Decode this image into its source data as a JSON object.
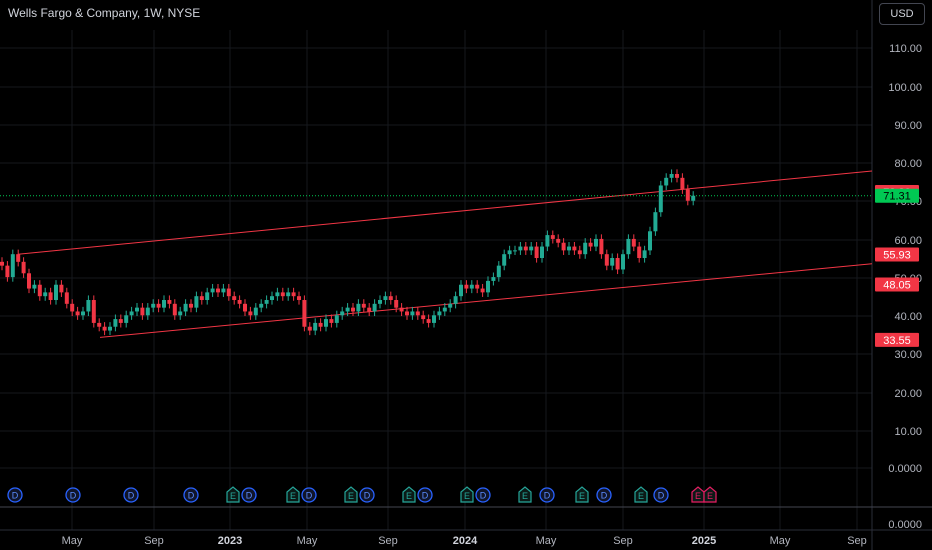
{
  "header": {
    "title": "Wells Fargo & Company, 1W, NYSE",
    "currency_label": "USD"
  },
  "colors": {
    "up": "#22ab94",
    "down": "#f23645",
    "channel": "#f23645",
    "last": "#00c853",
    "bg": "#000000"
  },
  "chart_data": {
    "type": "candlestick",
    "title": "Wells Fargo & Company, 1W, NYSE",
    "y_axis_ticks": [
      "110.00",
      "100.00",
      "90.00",
      "80.00",
      "70.00",
      "60.00",
      "50.00",
      "40.00",
      "30.00",
      "20.00",
      "10.00",
      "0.0000"
    ],
    "lower_axis_tick": "0.0000",
    "x_axis_ticks": [
      {
        "label": "May",
        "bold": false
      },
      {
        "label": "Sep",
        "bold": false
      },
      {
        "label": "2023",
        "bold": true
      },
      {
        "label": "May",
        "bold": false
      },
      {
        "label": "Sep",
        "bold": false
      },
      {
        "label": "2024",
        "bold": true
      },
      {
        "label": "May",
        "bold": false
      },
      {
        "label": "Sep",
        "bold": false
      },
      {
        "label": "2025",
        "bold": true
      },
      {
        "label": "May",
        "bold": false
      },
      {
        "label": "Sep",
        "bold": false
      }
    ],
    "price_tags": [
      {
        "label": "72.30",
        "value": 72.3,
        "color": "#f23645"
      },
      {
        "label": "71.31",
        "value": 71.31,
        "color": "#00c853"
      },
      {
        "label": "55.93",
        "value": 55.93,
        "color": "#f23645"
      },
      {
        "label": "48.05",
        "value": 48.05,
        "color": "#f23645"
      },
      {
        "label": "33.55",
        "value": 33.55,
        "color": "#f23645"
      }
    ],
    "channel_lines": [
      {
        "from": {
          "date": "2022-02",
          "price": 56
        },
        "to": {
          "date": "2025-11",
          "price": 77.8
        }
      },
      {
        "from": {
          "date": "2022-07",
          "price": 34.2
        },
        "to": {
          "date": "2025-11",
          "price": 53.5
        }
      }
    ],
    "closes": [
      53,
      50,
      56,
      54,
      51,
      47,
      48,
      45,
      46,
      44,
      48,
      46,
      43,
      41,
      40,
      41,
      44,
      38,
      37,
      36,
      37,
      39,
      38,
      40,
      41,
      42,
      40,
      42,
      43,
      42,
      44,
      43,
      40,
      41,
      43,
      42,
      45,
      44,
      46,
      47,
      46,
      47,
      45,
      44,
      43,
      41,
      40,
      42,
      43,
      44,
      45,
      46,
      45,
      46,
      45,
      44,
      37,
      36,
      38,
      37,
      39,
      38,
      40,
      41,
      42,
      41,
      43,
      42,
      41,
      43,
      44,
      45,
      44,
      42,
      41,
      40,
      41,
      40,
      39,
      38,
      40,
      41,
      42,
      43,
      45,
      48,
      47,
      48,
      47,
      46,
      49,
      50,
      53,
      56,
      57,
      57,
      58,
      57,
      58,
      55,
      58,
      61,
      60,
      59,
      57,
      58,
      57,
      56,
      59,
      58,
      60,
      56,
      53,
      55,
      52,
      56,
      60,
      58,
      55,
      57,
      62,
      67,
      74,
      76,
      77,
      76,
      73,
      70,
      71.31
    ],
    "events": [
      "D",
      "D",
      "D",
      "D",
      "E",
      "D",
      "E",
      "D",
      "E",
      "D",
      "E",
      "D",
      "E",
      "D",
      "E",
      "D",
      "E",
      "D",
      "E",
      "D",
      "E",
      "D",
      "E"
    ],
    "last_price": "71.31"
  }
}
